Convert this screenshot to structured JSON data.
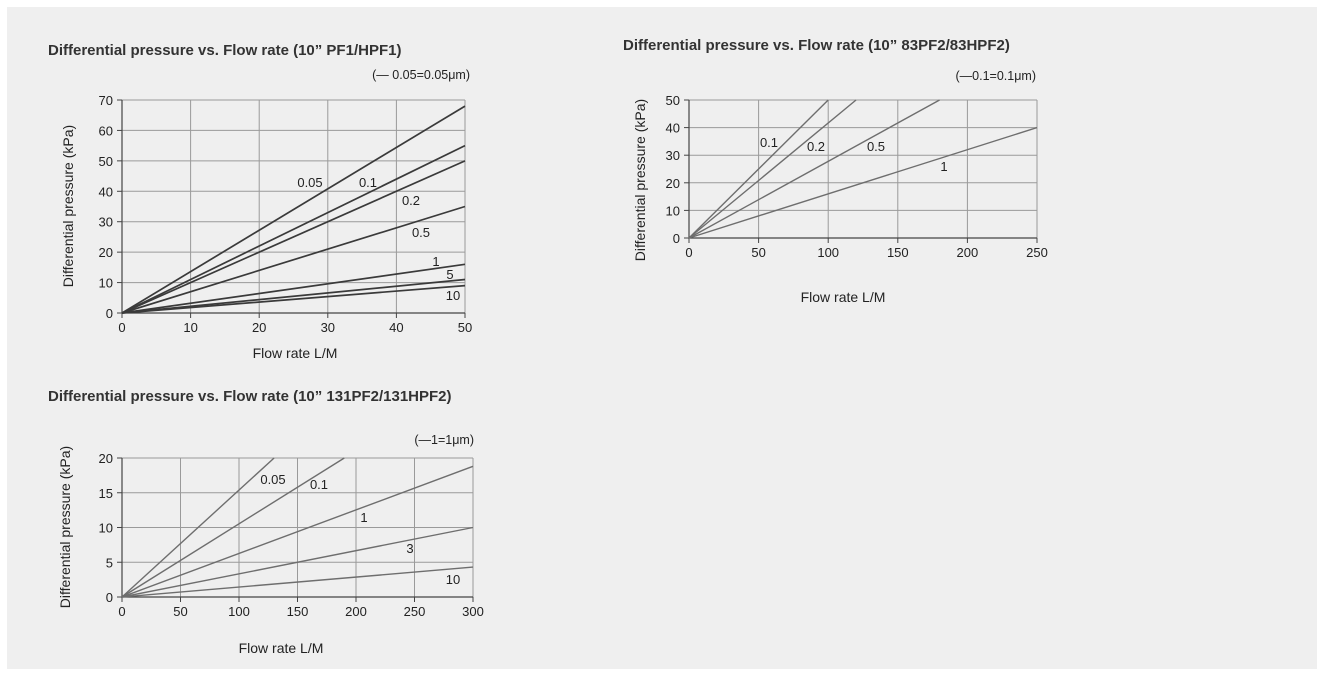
{
  "chart_data": [
    {
      "type": "line",
      "title": "Differential pressure vs. Flow rate (10” PF1/HPF1)",
      "note": "(— 0.05=0.05μm)",
      "xlabel": "Flow rate L/M",
      "ylabel": "Differential pressure (kPa)",
      "xlim": [
        0,
        50
      ],
      "ylim": [
        0,
        70
      ],
      "xticks": [
        0,
        10,
        20,
        30,
        40,
        50
      ],
      "yticks": [
        0,
        10,
        20,
        30,
        40,
        50,
        60,
        70
      ],
      "grid": true,
      "line_color": "#3a3a3a",
      "series": [
        {
          "name": "0.05",
          "x": [
            0,
            50
          ],
          "y": [
            0,
            68
          ]
        },
        {
          "name": "0.1",
          "x": [
            0,
            50
          ],
          "y": [
            0,
            55
          ]
        },
        {
          "name": "0.2",
          "x": [
            0,
            50
          ],
          "y": [
            0,
            50
          ]
        },
        {
          "name": "0.5",
          "x": [
            0,
            50
          ],
          "y": [
            0,
            35
          ]
        },
        {
          "name": "1",
          "x": [
            0,
            50
          ],
          "y": [
            0,
            16
          ]
        },
        {
          "name": "5",
          "x": [
            0,
            50
          ],
          "y": [
            0,
            11
          ]
        },
        {
          "name": "10",
          "x": [
            0,
            50
          ],
          "y": [
            0,
            9
          ]
        }
      ]
    },
    {
      "type": "line",
      "title": "Differential pressure vs. Flow rate (10” 83PF2/83HPF2)",
      "note": "(—0.1=0.1μm)",
      "xlabel": "Flow rate L/M",
      "ylabel": "Differential pressure (kPa)",
      "xlim": [
        0,
        250
      ],
      "ylim": [
        0,
        50
      ],
      "xticks": [
        0,
        50,
        100,
        150,
        200,
        250
      ],
      "yticks": [
        0,
        10,
        20,
        30,
        40,
        50
      ],
      "grid": true,
      "line_color": "#6e6e6e",
      "series": [
        {
          "name": "0.1",
          "x": [
            0,
            100
          ],
          "y": [
            0,
            50
          ]
        },
        {
          "name": "0.2",
          "x": [
            0,
            120
          ],
          "y": [
            0,
            50
          ]
        },
        {
          "name": "0.5",
          "x": [
            0,
            180
          ],
          "y": [
            0,
            50
          ]
        },
        {
          "name": "1",
          "x": [
            0,
            250
          ],
          "y": [
            0,
            40
          ]
        }
      ]
    },
    {
      "type": "line",
      "title": "Differential pressure vs. Flow rate (10” 131PF2/131HPF2)",
      "note": "(—1=1μm)",
      "xlabel": "Flow rate L/M",
      "ylabel": "Differential pressure (kPa)",
      "xlim": [
        0,
        300
      ],
      "ylim": [
        0,
        20
      ],
      "xticks": [
        0,
        50,
        100,
        150,
        200,
        250,
        300
      ],
      "yticks": [
        0,
        5,
        10,
        15,
        20
      ],
      "grid": true,
      "line_color": "#6e6e6e",
      "series": [
        {
          "name": "0.05",
          "x": [
            0,
            130
          ],
          "y": [
            0,
            20
          ]
        },
        {
          "name": "0.1",
          "x": [
            0,
            190
          ],
          "y": [
            0,
            20
          ]
        },
        {
          "name": "1",
          "x": [
            0,
            300
          ],
          "y": [
            0,
            18.8
          ]
        },
        {
          "name": "3",
          "x": [
            0,
            300
          ],
          "y": [
            0,
            10
          ]
        },
        {
          "name": "10",
          "x": [
            0,
            300
          ],
          "y": [
            0,
            4.3
          ]
        }
      ]
    }
  ]
}
